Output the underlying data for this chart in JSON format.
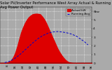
{
  "title1": "Solar PV/Inverter Performance West Array Actual & Running Avg Power Output",
  "title2": "Actual kW  ---",
  "bg_color": "#aaaaaa",
  "plot_bg_color": "#aaaaaa",
  "fill_color": "#dd0000",
  "line_color": "#0000cc",
  "grid_color": "#ffffff",
  "ylim": [
    0,
    6500
  ],
  "xlim": [
    0,
    96
  ],
  "x_ticks": [
    0,
    8,
    16,
    24,
    32,
    40,
    48,
    56,
    64,
    72,
    80,
    88,
    96
  ],
  "grid_x": [
    8,
    16,
    24,
    32,
    40,
    48,
    56,
    64,
    72,
    80,
    88
  ],
  "grid_y_vals": [
    1000,
    2000,
    3000,
    4000,
    5000,
    6000
  ],
  "actual_x": [
    0,
    2,
    4,
    5,
    6,
    8,
    10,
    12,
    14,
    16,
    18,
    20,
    22,
    24,
    26,
    28,
    30,
    32,
    34,
    36,
    38,
    40,
    42,
    44,
    46,
    48,
    50,
    52,
    54,
    56,
    58,
    60,
    62,
    64,
    66,
    68,
    70,
    72,
    74,
    76,
    78,
    80,
    82,
    84,
    86,
    88,
    90,
    92,
    94,
    96
  ],
  "actual_y": [
    0,
    0,
    0,
    0,
    0,
    50,
    150,
    350,
    700,
    1200,
    1900,
    2700,
    3500,
    4100,
    4600,
    5000,
    5300,
    5500,
    5650,
    5700,
    5720,
    5700,
    5650,
    5400,
    5100,
    4700,
    4200,
    3700,
    3200,
    2700,
    2200,
    1700,
    1300,
    950,
    650,
    400,
    200,
    80,
    30,
    5,
    0,
    0,
    0,
    0,
    0,
    0,
    0,
    0,
    0,
    0
  ],
  "avg_x": [
    5,
    10,
    15,
    20,
    25,
    30,
    35,
    40,
    45,
    50,
    55,
    60,
    65,
    70,
    75,
    80,
    84,
    88,
    90,
    92
  ],
  "avg_y": [
    50,
    200,
    500,
    900,
    1400,
    1900,
    2400,
    2850,
    3200,
    3450,
    3600,
    3650,
    3600,
    3500,
    3350,
    3100,
    2800,
    2500,
    2300,
    2100
  ],
  "ytick_vals": [
    0,
    1000,
    2000,
    3000,
    4000,
    5000,
    6000
  ],
  "ytick_labels": [
    "0",
    "1",
    "2",
    "3",
    "4",
    "5",
    "6kw"
  ],
  "title_fontsize": 3.8,
  "tick_fontsize": 3.2,
  "legend_fontsize": 3.0,
  "figsize": [
    1.6,
    1.0
  ],
  "dpi": 100
}
